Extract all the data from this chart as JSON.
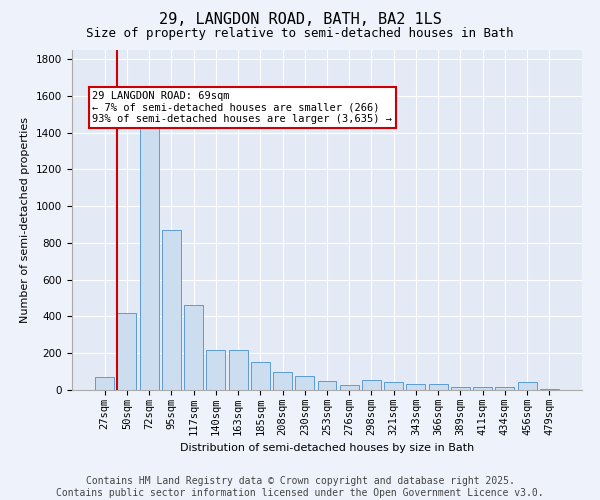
{
  "title": "29, LANGDON ROAD, BATH, BA2 1LS",
  "subtitle": "Size of property relative to semi-detached houses in Bath",
  "xlabel": "Distribution of semi-detached houses by size in Bath",
  "ylabel": "Number of semi-detached properties",
  "categories": [
    "27sqm",
    "50sqm",
    "72sqm",
    "95sqm",
    "117sqm",
    "140sqm",
    "163sqm",
    "185sqm",
    "208sqm",
    "230sqm",
    "253sqm",
    "276sqm",
    "298sqm",
    "321sqm",
    "343sqm",
    "366sqm",
    "389sqm",
    "411sqm",
    "434sqm",
    "456sqm",
    "479sqm"
  ],
  "values": [
    70,
    420,
    1440,
    870,
    460,
    215,
    215,
    155,
    100,
    75,
    50,
    25,
    55,
    45,
    35,
    30,
    15,
    15,
    15,
    45,
    8
  ],
  "bar_color": "#ccddf0",
  "bar_edge_color": "#5b9bd5",
  "highlight_bar_index": 1,
  "highlight_line_color": "#cc0000",
  "annotation_text": "29 LANGDON ROAD: 69sqm\n← 7% of semi-detached houses are smaller (266)\n93% of semi-detached houses are larger (3,635) →",
  "annotation_box_color": "#ffffff",
  "annotation_box_edge_color": "#cc0000",
  "footer_text": "Contains HM Land Registry data © Crown copyright and database right 2025.\nContains public sector information licensed under the Open Government Licence v3.0.",
  "ylim": [
    0,
    1850
  ],
  "yticks": [
    0,
    200,
    400,
    600,
    800,
    1000,
    1200,
    1400,
    1600,
    1800
  ],
  "background_color": "#eef2fa",
  "plot_background_color": "#e4eaf5",
  "grid_color": "#ffffff",
  "title_fontsize": 11,
  "subtitle_fontsize": 9,
  "axis_label_fontsize": 8,
  "tick_fontsize": 7.5,
  "footer_fontsize": 7,
  "annotation_fontsize": 7.5
}
